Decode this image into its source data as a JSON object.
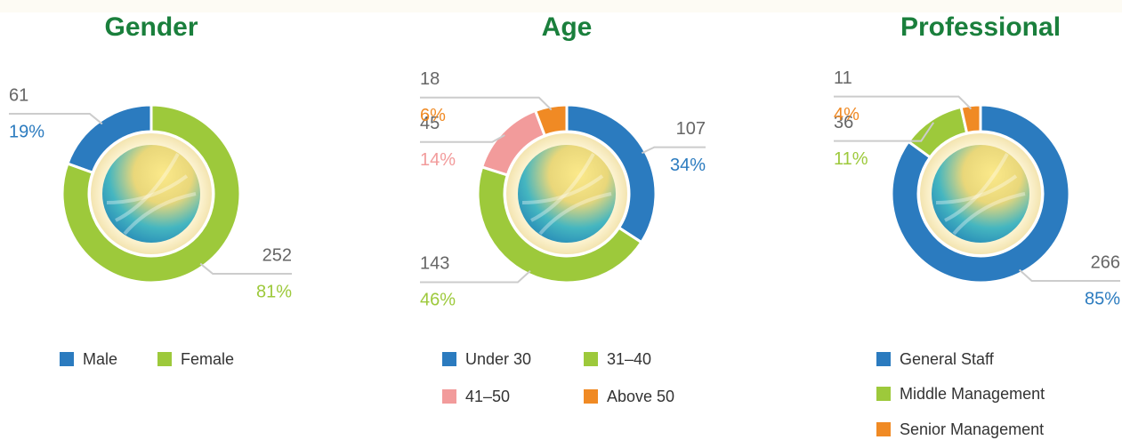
{
  "chart_data": [
    {
      "type": "donut",
      "title": "Gender",
      "direction": "counterclockwise",
      "categories": [
        "Male",
        "Female"
      ],
      "values": [
        61,
        252
      ],
      "percent_labels": [
        "19%",
        "81%"
      ],
      "colors": [
        "#2b7bbf",
        "#9dc93b"
      ]
    },
    {
      "type": "donut",
      "title": "Age",
      "direction": "clockwise",
      "categories": [
        "Under 30",
        "31–40",
        "41–50",
        "Above 50"
      ],
      "values": [
        107,
        143,
        45,
        18
      ],
      "percent_labels": [
        "34%",
        "46%",
        "14%",
        "6%"
      ],
      "colors": [
        "#2b7bbf",
        "#9dc93b",
        "#f29b9b",
        "#f08a24"
      ]
    },
    {
      "type": "donut",
      "title": "Professional",
      "direction": "clockwise",
      "categories": [
        "General Staff",
        "Middle Management",
        "Senior Management"
      ],
      "values": [
        266,
        36,
        11
      ],
      "percent_labels": [
        "85%",
        "11%",
        "4%"
      ],
      "colors": [
        "#2b7bbf",
        "#9dc93b",
        "#f08a24"
      ]
    }
  ]
}
